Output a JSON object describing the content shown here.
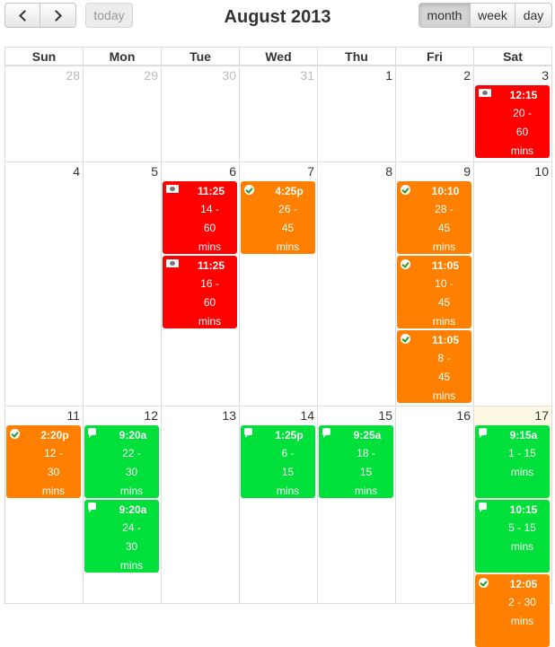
{
  "toolbar": {
    "prev_icon": "chevron-left-icon",
    "next_icon": "chevron-right-icon",
    "today": "today",
    "title": "August 2013",
    "views": {
      "month": "month",
      "week": "week",
      "day": "day"
    },
    "active_view": "month"
  },
  "weekdays": [
    "Sun",
    "Mon",
    "Tue",
    "Wed",
    "Thu",
    "Fri",
    "Sat"
  ],
  "weeks": [
    [
      "28",
      "29",
      "30",
      "31",
      "1",
      "2",
      "3"
    ],
    [
      "4",
      "5",
      "6",
      "7",
      "8",
      "9",
      "10"
    ],
    [
      "11",
      "12",
      "13",
      "14",
      "15",
      "16",
      "17"
    ]
  ],
  "other_month_days": [
    "28",
    "29",
    "30",
    "31"
  ],
  "today": "17",
  "colors": {
    "red": "#ff0000",
    "orange": "#ff8000",
    "green": "#00e03a"
  },
  "events": [
    {
      "day": "3",
      "time": "12:15",
      "lines": [
        "20 -",
        "60",
        "mins"
      ],
      "color": "red",
      "icon": "cash-icon"
    },
    {
      "day": "6",
      "time": "11:25",
      "lines": [
        "14 -",
        "60",
        "mins"
      ],
      "color": "red",
      "icon": "cash-icon"
    },
    {
      "day": "6",
      "time": "11:25",
      "lines": [
        "16 -",
        "60",
        "mins"
      ],
      "color": "red",
      "icon": "cash-icon"
    },
    {
      "day": "7",
      "time": "4:25p",
      "lines": [
        "26 -",
        "45",
        "mins"
      ],
      "color": "orange",
      "icon": "check-icon"
    },
    {
      "day": "9",
      "time": "10:10",
      "lines": [
        "28 -",
        "45",
        "mins"
      ],
      "color": "orange",
      "icon": "check-icon"
    },
    {
      "day": "9",
      "time": "11:05",
      "lines": [
        "10 -",
        "45",
        "mins"
      ],
      "color": "orange",
      "icon": "check-icon"
    },
    {
      "day": "9",
      "time": "11:05",
      "lines": [
        "8 -",
        "45",
        "mins"
      ],
      "color": "orange",
      "icon": "check-icon"
    },
    {
      "day": "11",
      "time": "2:20p",
      "lines": [
        "12 -",
        "30",
        "mins"
      ],
      "color": "orange",
      "icon": "check-icon"
    },
    {
      "day": "12",
      "time": "9:20a",
      "lines": [
        "22 -",
        "30",
        "mins"
      ],
      "color": "green",
      "icon": "chat-icon"
    },
    {
      "day": "12",
      "time": "9:20a",
      "lines": [
        "24 -",
        "30",
        "mins"
      ],
      "color": "green",
      "icon": "chat-icon"
    },
    {
      "day": "14",
      "time": "1:25p",
      "lines": [
        "6 -",
        "15",
        "mins"
      ],
      "color": "green",
      "icon": "chat-icon"
    },
    {
      "day": "15",
      "time": "9:25a",
      "lines": [
        "18 -",
        "15",
        "mins"
      ],
      "color": "green",
      "icon": "chat-icon"
    },
    {
      "day": "17",
      "time": "9:15a",
      "lines": [
        "1 - 15",
        "mins"
      ],
      "color": "green",
      "icon": "chat-icon"
    },
    {
      "day": "17",
      "time": "10:15",
      "lines": [
        "5 - 15",
        "mins"
      ],
      "color": "green",
      "icon": "chat-icon"
    },
    {
      "day": "17",
      "time": "12:05",
      "lines": [
        "2 - 30",
        "mins"
      ],
      "color": "orange",
      "icon": "check-icon"
    }
  ]
}
